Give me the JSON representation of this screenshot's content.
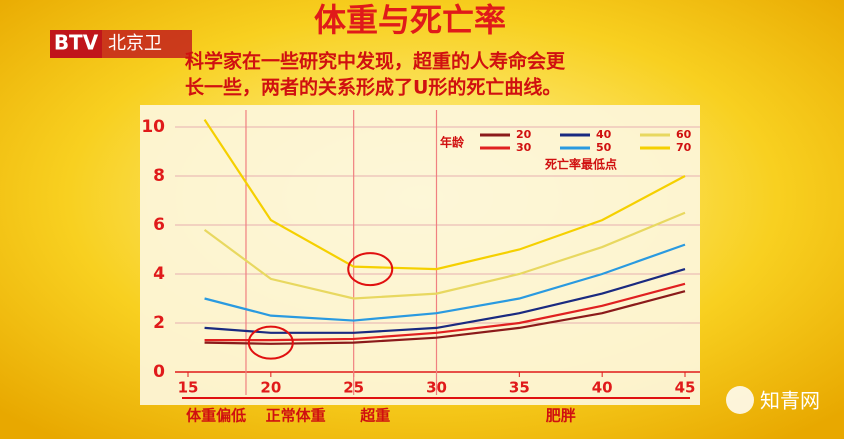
{
  "channel": {
    "logo": "BTV",
    "name": "北京卫"
  },
  "watermark": "知青网",
  "chart_data": {
    "type": "line",
    "title": "体重与死亡率",
    "subtitle": [
      "科学家在一些研究中发现，超重的人寿命会更",
      "长一些，两者的关系形成了U形的死亡曲线。"
    ],
    "x": [
      16,
      20,
      25,
      30,
      35,
      40,
      45
    ],
    "series": [
      {
        "name": "20",
        "color": "#8b1a1a",
        "values": [
          1.2,
          1.15,
          1.2,
          1.4,
          1.8,
          2.4,
          3.3
        ]
      },
      {
        "name": "30",
        "color": "#e02020",
        "values": [
          1.3,
          1.3,
          1.35,
          1.6,
          2.0,
          2.7,
          3.6
        ]
      },
      {
        "name": "40",
        "color": "#1a2a80",
        "values": [
          1.8,
          1.6,
          1.6,
          1.8,
          2.4,
          3.2,
          4.2
        ]
      },
      {
        "name": "50",
        "color": "#2a9ae0",
        "values": [
          3.0,
          2.3,
          2.1,
          2.4,
          3.0,
          4.0,
          5.2
        ]
      },
      {
        "name": "60",
        "color": "#e8d860",
        "values": [
          5.8,
          3.8,
          3.0,
          3.2,
          4.0,
          5.1,
          6.5
        ]
      },
      {
        "name": "70",
        "color": "#f5d000",
        "values": [
          10.3,
          6.2,
          4.3,
          4.2,
          5.0,
          6.2,
          8.0
        ]
      }
    ],
    "legend_title": "年龄",
    "minimum_label": "死亡率最低点",
    "minima": [
      {
        "x": 20,
        "y": 1.2
      },
      {
        "x": 26,
        "y": 4.2
      }
    ],
    "reference_lines": [
      18.5,
      25,
      30
    ],
    "xlim": [
      15,
      45
    ],
    "ylim": [
      0,
      10
    ],
    "xticks": [
      15,
      20,
      25,
      30,
      35,
      40,
      45
    ],
    "yticks": [
      0,
      2,
      4,
      6,
      8,
      10
    ],
    "grid": true,
    "bmi_categories": [
      {
        "label": "体重偏低",
        "x": 16.7
      },
      {
        "label": "正常体重",
        "x": 21.5
      },
      {
        "label": "超重",
        "x": 26.3
      },
      {
        "label": "肥胖",
        "x": 37.5
      }
    ]
  }
}
